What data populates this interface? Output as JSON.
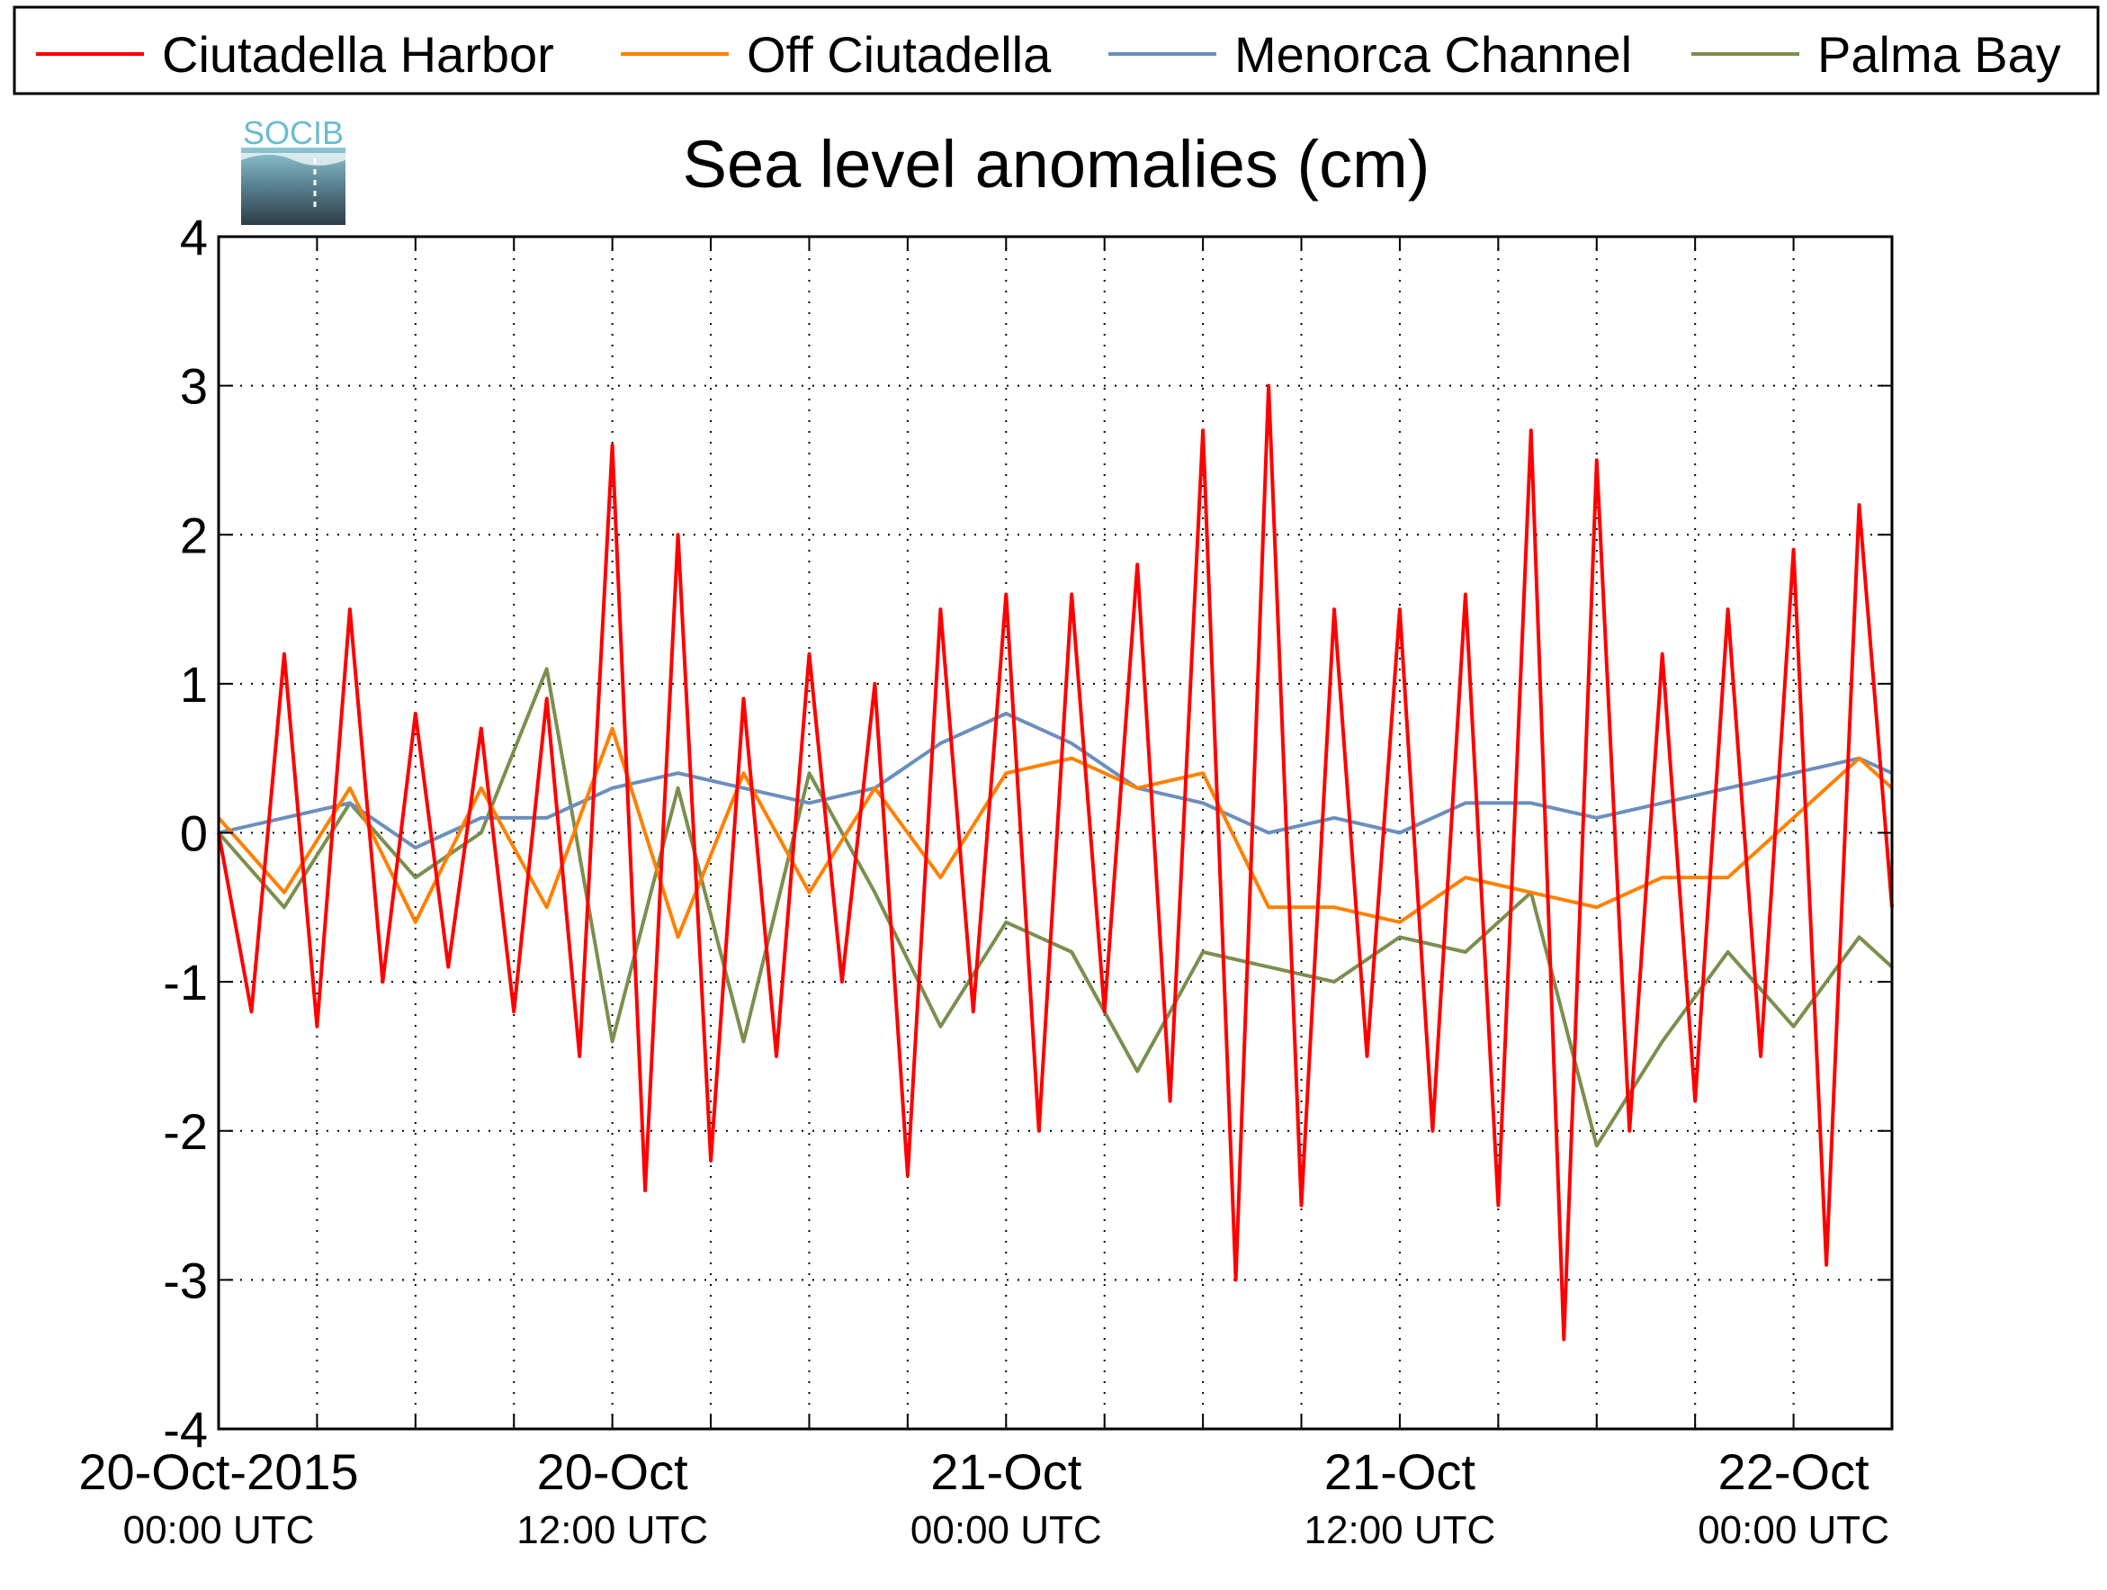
{
  "chart_data": {
    "type": "line",
    "title": "Sea level anomalies (cm)",
    "xlabel": "",
    "ylabel": "",
    "ylim": [
      -4,
      4
    ],
    "yticks": [
      -4,
      -3,
      -2,
      -1,
      0,
      1,
      2,
      3,
      4
    ],
    "xlim": [
      "2015-10-20T00:00Z",
      "2015-10-22T03:00Z"
    ],
    "xticks": [
      {
        "t": "2015-10-20T00:00Z",
        "date": "20-Oct-2015",
        "time": "00:00 UTC"
      },
      {
        "t": "2015-10-20T12:00Z",
        "date": "20-Oct",
        "time": "12:00 UTC"
      },
      {
        "t": "2015-10-21T00:00Z",
        "date": "21-Oct",
        "time": "00:00 UTC"
      },
      {
        "t": "2015-10-21T12:00Z",
        "date": "21-Oct",
        "time": "12:00 UTC"
      },
      {
        "t": "2015-10-22T00:00Z",
        "date": "22-Oct",
        "time": "00:00 UTC"
      }
    ],
    "grid": true,
    "legend": "top",
    "logo": {
      "text": "SOCIB"
    },
    "series": [
      {
        "name": "Ciutadella Harbor",
        "color": "#ff0000",
        "points": [
          [
            "2015-10-20T00:00Z",
            0.0
          ],
          [
            "2015-10-20T01:00Z",
            -1.2
          ],
          [
            "2015-10-20T02:00Z",
            1.2
          ],
          [
            "2015-10-20T03:00Z",
            -1.3
          ],
          [
            "2015-10-20T04:00Z",
            1.5
          ],
          [
            "2015-10-20T05:00Z",
            -1.0
          ],
          [
            "2015-10-20T06:00Z",
            0.8
          ],
          [
            "2015-10-20T07:00Z",
            -0.9
          ],
          [
            "2015-10-20T08:00Z",
            0.7
          ],
          [
            "2015-10-20T09:00Z",
            -1.2
          ],
          [
            "2015-10-20T10:00Z",
            0.9
          ],
          [
            "2015-10-20T11:00Z",
            -1.5
          ],
          [
            "2015-10-20T12:00Z",
            2.6
          ],
          [
            "2015-10-20T13:00Z",
            -2.4
          ],
          [
            "2015-10-20T14:00Z",
            2.0
          ],
          [
            "2015-10-20T15:00Z",
            -2.2
          ],
          [
            "2015-10-20T16:00Z",
            0.9
          ],
          [
            "2015-10-20T17:00Z",
            -1.5
          ],
          [
            "2015-10-20T18:00Z",
            1.2
          ],
          [
            "2015-10-20T19:00Z",
            -1.0
          ],
          [
            "2015-10-20T20:00Z",
            1.0
          ],
          [
            "2015-10-20T21:00Z",
            -2.3
          ],
          [
            "2015-10-20T22:00Z",
            1.5
          ],
          [
            "2015-10-20T23:00Z",
            -1.2
          ],
          [
            "2015-10-21T00:00Z",
            1.6
          ],
          [
            "2015-10-21T01:00Z",
            -2.0
          ],
          [
            "2015-10-21T02:00Z",
            1.6
          ],
          [
            "2015-10-21T03:00Z",
            -1.2
          ],
          [
            "2015-10-21T04:00Z",
            1.8
          ],
          [
            "2015-10-21T05:00Z",
            -1.8
          ],
          [
            "2015-10-21T06:00Z",
            2.7
          ],
          [
            "2015-10-21T07:00Z",
            -3.0
          ],
          [
            "2015-10-21T08:00Z",
            3.0
          ],
          [
            "2015-10-21T09:00Z",
            -2.5
          ],
          [
            "2015-10-21T10:00Z",
            1.5
          ],
          [
            "2015-10-21T11:00Z",
            -1.5
          ],
          [
            "2015-10-21T12:00Z",
            1.5
          ],
          [
            "2015-10-21T13:00Z",
            -2.0
          ],
          [
            "2015-10-21T14:00Z",
            1.6
          ],
          [
            "2015-10-21T15:00Z",
            -2.5
          ],
          [
            "2015-10-21T16:00Z",
            2.7
          ],
          [
            "2015-10-21T17:00Z",
            -3.4
          ],
          [
            "2015-10-21T18:00Z",
            2.5
          ],
          [
            "2015-10-21T19:00Z",
            -2.0
          ],
          [
            "2015-10-21T20:00Z",
            1.2
          ],
          [
            "2015-10-21T21:00Z",
            -1.8
          ],
          [
            "2015-10-21T22:00Z",
            1.5
          ],
          [
            "2015-10-21T23:00Z",
            -1.5
          ],
          [
            "2015-10-22T00:00Z",
            1.9
          ],
          [
            "2015-10-22T01:00Z",
            -2.9
          ],
          [
            "2015-10-22T02:00Z",
            2.2
          ],
          [
            "2015-10-22T03:00Z",
            -0.5
          ]
        ]
      },
      {
        "name": "Off Ciutadella",
        "color": "#ff8000",
        "points": [
          [
            "2015-10-20T00:00Z",
            0.1
          ],
          [
            "2015-10-20T02:00Z",
            -0.4
          ],
          [
            "2015-10-20T04:00Z",
            0.3
          ],
          [
            "2015-10-20T06:00Z",
            -0.6
          ],
          [
            "2015-10-20T08:00Z",
            0.3
          ],
          [
            "2015-10-20T10:00Z",
            -0.5
          ],
          [
            "2015-10-20T12:00Z",
            0.7
          ],
          [
            "2015-10-20T14:00Z",
            -0.7
          ],
          [
            "2015-10-20T16:00Z",
            0.4
          ],
          [
            "2015-10-20T18:00Z",
            -0.4
          ],
          [
            "2015-10-20T20:00Z",
            0.3
          ],
          [
            "2015-10-20T22:00Z",
            -0.3
          ],
          [
            "2015-10-21T00:00Z",
            0.4
          ],
          [
            "2015-10-21T02:00Z",
            0.5
          ],
          [
            "2015-10-21T04:00Z",
            0.3
          ],
          [
            "2015-10-21T06:00Z",
            0.4
          ],
          [
            "2015-10-21T08:00Z",
            -0.5
          ],
          [
            "2015-10-21T10:00Z",
            -0.5
          ],
          [
            "2015-10-21T12:00Z",
            -0.6
          ],
          [
            "2015-10-21T14:00Z",
            -0.3
          ],
          [
            "2015-10-21T16:00Z",
            -0.4
          ],
          [
            "2015-10-21T18:00Z",
            -0.5
          ],
          [
            "2015-10-21T20:00Z",
            -0.3
          ],
          [
            "2015-10-21T22:00Z",
            -0.3
          ],
          [
            "2015-10-22T00:00Z",
            0.1
          ],
          [
            "2015-10-22T02:00Z",
            0.5
          ],
          [
            "2015-10-22T03:00Z",
            0.3
          ]
        ]
      },
      {
        "name": "Menorca Channel",
        "color": "#6b8fbd",
        "points": [
          [
            "2015-10-20T00:00Z",
            0.0
          ],
          [
            "2015-10-20T02:00Z",
            0.1
          ],
          [
            "2015-10-20T04:00Z",
            0.2
          ],
          [
            "2015-10-20T06:00Z",
            -0.1
          ],
          [
            "2015-10-20T08:00Z",
            0.1
          ],
          [
            "2015-10-20T10:00Z",
            0.1
          ],
          [
            "2015-10-20T12:00Z",
            0.3
          ],
          [
            "2015-10-20T14:00Z",
            0.4
          ],
          [
            "2015-10-20T16:00Z",
            0.3
          ],
          [
            "2015-10-20T18:00Z",
            0.2
          ],
          [
            "2015-10-20T20:00Z",
            0.3
          ],
          [
            "2015-10-20T22:00Z",
            0.6
          ],
          [
            "2015-10-21T00:00Z",
            0.8
          ],
          [
            "2015-10-21T02:00Z",
            0.6
          ],
          [
            "2015-10-21T04:00Z",
            0.3
          ],
          [
            "2015-10-21T06:00Z",
            0.2
          ],
          [
            "2015-10-21T08:00Z",
            0.0
          ],
          [
            "2015-10-21T10:00Z",
            0.1
          ],
          [
            "2015-10-21T12:00Z",
            0.0
          ],
          [
            "2015-10-21T14:00Z",
            0.2
          ],
          [
            "2015-10-21T16:00Z",
            0.2
          ],
          [
            "2015-10-21T18:00Z",
            0.1
          ],
          [
            "2015-10-21T20:00Z",
            0.2
          ],
          [
            "2015-10-21T22:00Z",
            0.3
          ],
          [
            "2015-10-22T00:00Z",
            0.4
          ],
          [
            "2015-10-22T02:00Z",
            0.5
          ],
          [
            "2015-10-22T03:00Z",
            0.4
          ]
        ]
      },
      {
        "name": "Palma Bay",
        "color": "#7a8f4e",
        "points": [
          [
            "2015-10-20T00:00Z",
            0.0
          ],
          [
            "2015-10-20T02:00Z",
            -0.5
          ],
          [
            "2015-10-20T04:00Z",
            0.2
          ],
          [
            "2015-10-20T06:00Z",
            -0.3
          ],
          [
            "2015-10-20T08:00Z",
            0.0
          ],
          [
            "2015-10-20T10:00Z",
            1.1
          ],
          [
            "2015-10-20T12:00Z",
            -1.4
          ],
          [
            "2015-10-20T14:00Z",
            0.3
          ],
          [
            "2015-10-20T16:00Z",
            -1.4
          ],
          [
            "2015-10-20T18:00Z",
            0.4
          ],
          [
            "2015-10-20T20:00Z",
            -0.4
          ],
          [
            "2015-10-20T22:00Z",
            -1.3
          ],
          [
            "2015-10-21T00:00Z",
            -0.6
          ],
          [
            "2015-10-21T02:00Z",
            -0.8
          ],
          [
            "2015-10-21T04:00Z",
            -1.6
          ],
          [
            "2015-10-21T06:00Z",
            -0.8
          ],
          [
            "2015-10-21T08:00Z",
            -0.9
          ],
          [
            "2015-10-21T10:00Z",
            -1.0
          ],
          [
            "2015-10-21T12:00Z",
            -0.7
          ],
          [
            "2015-10-21T14:00Z",
            -0.8
          ],
          [
            "2015-10-21T16:00Z",
            -0.4
          ],
          [
            "2015-10-21T18:00Z",
            -2.1
          ],
          [
            "2015-10-21T20:00Z",
            -1.4
          ],
          [
            "2015-10-21T22:00Z",
            -0.8
          ],
          [
            "2015-10-22T00:00Z",
            -1.3
          ],
          [
            "2015-10-22T02:00Z",
            -0.7
          ],
          [
            "2015-10-22T03:00Z",
            -0.9
          ]
        ]
      }
    ]
  }
}
